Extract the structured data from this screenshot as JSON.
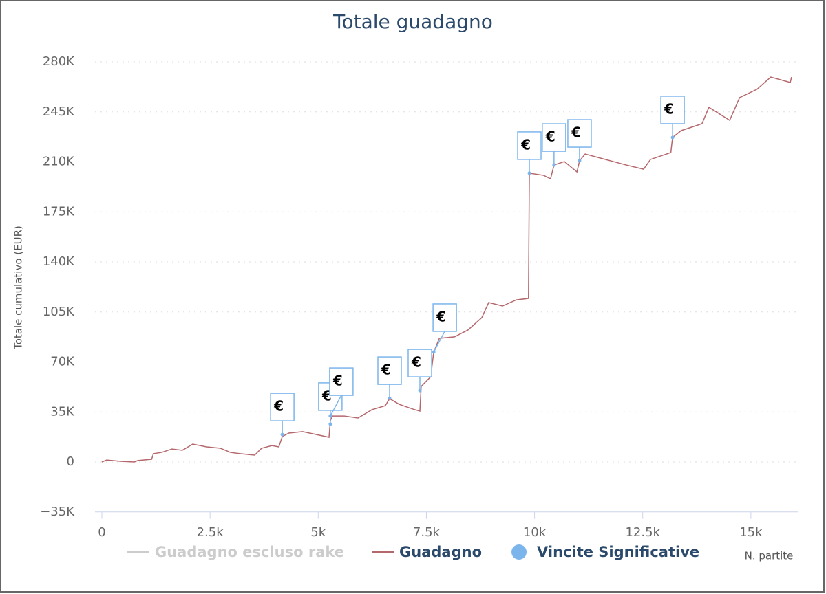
{
  "chart_data": {
    "type": "line",
    "title": "Totale guadagno",
    "x_label": "N. partite",
    "y_label": "Totale cumulativo (EUR)",
    "xlim": [
      0,
      16100
    ],
    "ylim": [
      -35000,
      280000
    ],
    "xticks": [
      0,
      {
        "value": 2500,
        "label": "2.5k"
      },
      {
        "value": 5000,
        "label": "5k"
      },
      {
        "value": 7500,
        "label": "7.5k"
      },
      {
        "value": 10000,
        "label": "10k"
      },
      {
        "value": 12500,
        "label": "12.5k"
      },
      {
        "value": 15000,
        "label": "15k"
      }
    ],
    "yticks": [
      {
        "value": -35000,
        "label": "−35K"
      },
      0,
      {
        "value": 35000,
        "label": "35K"
      },
      {
        "value": 70000,
        "label": "70K"
      },
      {
        "value": 105000,
        "label": "105K"
      },
      {
        "value": 140000,
        "label": "140K"
      },
      {
        "value": 175000,
        "label": "175K"
      },
      {
        "value": 210000,
        "label": "210K"
      },
      {
        "value": 245000,
        "label": "245K"
      },
      {
        "value": 280000,
        "label": "280K"
      }
    ],
    "grid": true,
    "series": [
      {
        "name": "Guadagno escluso rake",
        "color": "#cccccc",
        "visible": false
      },
      {
        "name": "Guadagno",
        "color": "#b5686c",
        "x": [
          0,
          111,
          430,
          750,
          830,
          1150,
          1190,
          1380,
          1620,
          1860,
          2100,
          2420,
          2740,
          2970,
          3210,
          3530,
          3690,
          3930,
          4090,
          4170,
          4320,
          4640,
          4960,
          5250,
          5280,
          5330,
          5600,
          5920,
          6240,
          6550,
          6650,
          6870,
          7190,
          7350,
          7380,
          7600,
          7670,
          7800,
          8150,
          8460,
          8780,
          8940,
          9260,
          9580,
          9860,
          9880,
          10210,
          10370,
          10450,
          10690,
          10980,
          11040,
          11170,
          11640,
          12120,
          12520,
          12680,
          13150,
          13190,
          13390,
          13870,
          14030,
          14510,
          14740,
          15140,
          15460,
          15910,
          15940
        ],
        "values": [
          0,
          1400,
          500,
          0,
          1000,
          1900,
          5800,
          6700,
          9100,
          8200,
          12500,
          10600,
          9600,
          6700,
          5800,
          4800,
          9600,
          11500,
          10600,
          17800,
          20200,
          21200,
          19200,
          17300,
          28900,
          32200,
          32200,
          30800,
          36600,
          39400,
          44300,
          40400,
          37000,
          35600,
          52900,
          59700,
          77000,
          86600,
          87600,
          92400,
          101000,
          111600,
          109200,
          113500,
          114500,
          202100,
          200600,
          198200,
          207800,
          210200,
          203000,
          210700,
          215500,
          211700,
          207800,
          204900,
          211700,
          216500,
          227100,
          231900,
          236700,
          248200,
          239100,
          255000,
          260800,
          269400,
          265600,
          269400
        ]
      },
      {
        "name": "Vincite Significative",
        "color": "#7cb5ec",
        "type": "scatter",
        "x": [
          4170,
          5280,
          5280,
          6650,
          7350,
          7670,
          9880,
          10450,
          11040,
          13190
        ],
        "values": [
          19200,
          26500,
          32200,
          44700,
          50000,
          77000,
          202100,
          207800,
          210700,
          227100
        ],
        "labels": [
          "€",
          "€",
          "€",
          "€",
          "€",
          "€",
          "€",
          "€",
          "€",
          "€"
        ]
      }
    ]
  }
}
